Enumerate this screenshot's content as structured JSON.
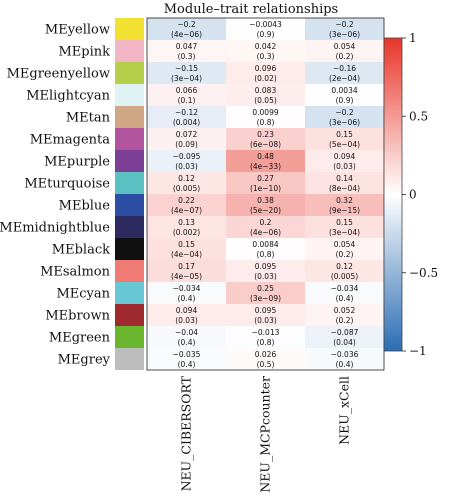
{
  "chart_data": {
    "type": "heatmap",
    "title": "Module–trait relationships",
    "columns": [
      "NEU_CIBERSORT",
      "NEU_MCPcounter",
      "NEU_xCell"
    ],
    "rows": [
      {
        "module": "MEyellow",
        "color": "#f2e033",
        "cor": [
          -0.2,
          -0.0043,
          -0.2
        ],
        "p": [
          "(4e−06)",
          "(0.9)",
          "(3e−06)"
        ],
        "cor_text": [
          "−0.2",
          "−0.0043",
          "−0.2"
        ]
      },
      {
        "module": "MEpink",
        "color": "#f2b6c6",
        "cor": [
          0.047,
          0.042,
          0.054
        ],
        "p": [
          "(0.3)",
          "(0.3)",
          "(0.2)"
        ],
        "cor_text": [
          "0.047",
          "0.042",
          "0.054"
        ]
      },
      {
        "module": "MEgreenyellow",
        "color": "#b5cf4a",
        "cor": [
          -0.15,
          0.096,
          -0.16
        ],
        "p": [
          "(3e−04)",
          "(0.02)",
          "(2e−04)"
        ],
        "cor_text": [
          "−0.15",
          "0.096",
          "−0.16"
        ]
      },
      {
        "module": "MElightcyan",
        "color": "#dff3f5",
        "cor": [
          0.066,
          0.083,
          0.0034
        ],
        "p": [
          "(0.1)",
          "(0.05)",
          "(0.9)"
        ],
        "cor_text": [
          "0.066",
          "0.083",
          "0.0034"
        ]
      },
      {
        "module": "MEtan",
        "color": "#cfa784",
        "cor": [
          -0.12,
          0.0099,
          -0.2
        ],
        "p": [
          "(0.004)",
          "(0.8)",
          "(3e−06)"
        ],
        "cor_text": [
          "−0.12",
          "0.0099",
          "−0.2"
        ]
      },
      {
        "module": "MEmagenta",
        "color": "#b2549e",
        "cor": [
          0.072,
          0.23,
          0.15
        ],
        "p": [
          "(0.09)",
          "(6e−08)",
          "(5e−04)"
        ],
        "cor_text": [
          "0.072",
          "0.23",
          "0.15"
        ]
      },
      {
        "module": "MEpurple",
        "color": "#7b3f96",
        "cor": [
          -0.095,
          0.48,
          0.094
        ],
        "p": [
          "(0.03)",
          "(4e−33)",
          "(0.03)"
        ],
        "cor_text": [
          "−0.095",
          "0.48",
          "0.094"
        ]
      },
      {
        "module": "MEturquoise",
        "color": "#5cc1c3",
        "cor": [
          0.12,
          0.27,
          0.14
        ],
        "p": [
          "(0.005)",
          "(1e−10)",
          "(8e−04)"
        ],
        "cor_text": [
          "0.12",
          "0.27",
          "0.14"
        ]
      },
      {
        "module": "MEblue",
        "color": "#2d4fa3",
        "cor": [
          0.22,
          0.38,
          0.32
        ],
        "p": [
          "(4e−07)",
          "(5e−20)",
          "(9e−15)"
        ],
        "cor_text": [
          "0.22",
          "0.38",
          "0.32"
        ]
      },
      {
        "module": "MEmidnightblue",
        "color": "#2c2a5e",
        "cor": [
          0.13,
          0.2,
          0.15
        ],
        "p": [
          "(0.002)",
          "(4e−06)",
          "(3e−04)"
        ],
        "cor_text": [
          "0.13",
          "0.2",
          "0.15"
        ]
      },
      {
        "module": "MEblack",
        "color": "#111111",
        "cor": [
          0.15,
          0.0084,
          0.054
        ],
        "p": [
          "(4e−04)",
          "(0.8)",
          "(0.2)"
        ],
        "cor_text": [
          "0.15",
          "0.0084",
          "0.054"
        ]
      },
      {
        "module": "MEsalmon",
        "color": "#ef7b74",
        "cor": [
          0.17,
          0.095,
          0.12
        ],
        "p": [
          "(4e−05)",
          "(0.03)",
          "(0.005)"
        ],
        "cor_text": [
          "0.17",
          "0.095",
          "0.12"
        ]
      },
      {
        "module": "MEcyan",
        "color": "#68c7d4",
        "cor": [
          -0.034,
          0.25,
          -0.034
        ],
        "p": [
          "(0.4)",
          "(3e−09)",
          "(0.4)"
        ],
        "cor_text": [
          "−0.034",
          "0.25",
          "−0.034"
        ]
      },
      {
        "module": "MEbrown",
        "color": "#9e2a2f",
        "cor": [
          0.094,
          0.095,
          0.052
        ],
        "p": [
          "(0.03)",
          "(0.03)",
          "(0.2)"
        ],
        "cor_text": [
          "0.094",
          "0.095",
          "0.052"
        ]
      },
      {
        "module": "MEgreen",
        "color": "#69b52e",
        "cor": [
          -0.04,
          -0.013,
          -0.087
        ],
        "p": [
          "(0.4)",
          "(0.8)",
          "(0.04)"
        ],
        "cor_text": [
          "−0.04",
          "−0.013",
          "−0.087"
        ]
      },
      {
        "module": "MEgrey",
        "color": "#bdbdbd",
        "cor": [
          -0.035,
          0.026,
          -0.036
        ],
        "p": [
          "(0.4)",
          "(0.5)",
          "(0.4)"
        ],
        "cor_text": [
          "−0.035",
          "0.026",
          "−0.036"
        ]
      }
    ],
    "color_scale": {
      "range": [
        -1,
        1
      ],
      "low": "#2b6db3",
      "mid": "#ffffff",
      "high": "#e83529",
      "ticks": [
        1,
        0.5,
        0,
        -0.5,
        -1
      ],
      "tick_labels": [
        "1",
        "0.5",
        "0",
        "−0.5",
        "−1"
      ]
    }
  }
}
